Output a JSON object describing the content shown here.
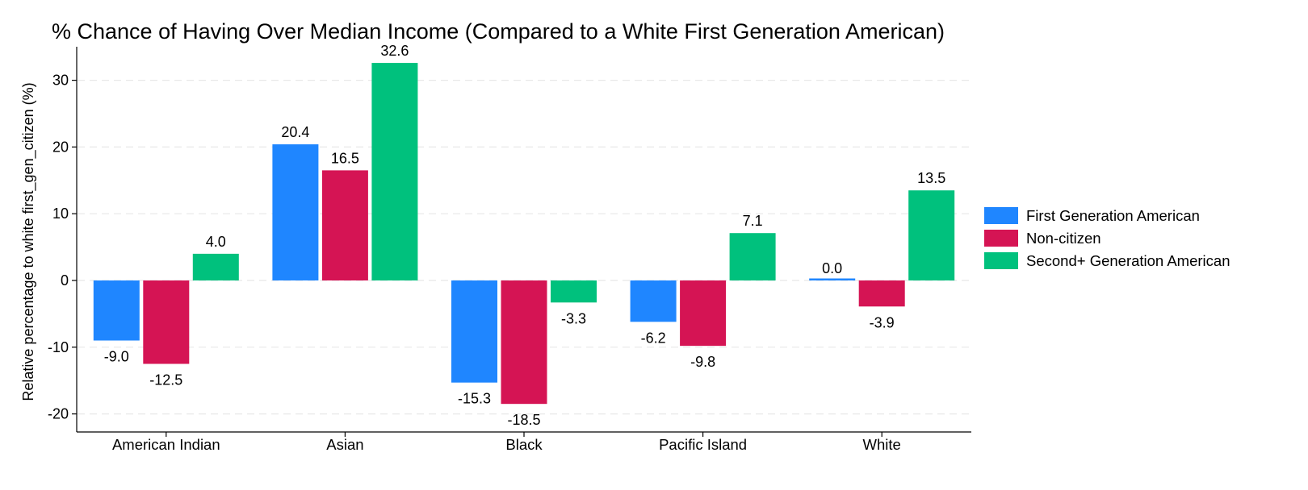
{
  "chart_data": {
    "type": "bar",
    "title": "% Chance of Having Over Median Income (Compared to a White First Generation American)",
    "xlabel": "",
    "ylabel": "Relative percentage to white first_gen_citizen (%)",
    "categories": [
      "American Indian",
      "Asian",
      "Black",
      "Pacific Island",
      "White"
    ],
    "series": [
      {
        "name": "First Generation American",
        "color": "#1f86ff",
        "values": [
          -9.0,
          20.4,
          -15.3,
          -6.2,
          0.0
        ],
        "labels": [
          "-9.0",
          "20.4",
          "-15.3",
          "-6.2",
          "0.0"
        ]
      },
      {
        "name": "Non-citizen",
        "color": "#d51454",
        "values": [
          -12.5,
          16.5,
          -18.5,
          -9.8,
          -3.9
        ],
        "labels": [
          "-12.5",
          "16.5",
          "-18.5",
          "-9.8",
          "-3.9"
        ]
      },
      {
        "name": "Second+ Generation American",
        "color": "#00c17d",
        "values": [
          4.0,
          32.6,
          -3.3,
          7.1,
          13.5
        ],
        "labels": [
          "4.0",
          "32.6",
          "-3.3",
          "7.1",
          "13.5"
        ]
      }
    ],
    "yticks": [
      -20,
      -10,
      0,
      10,
      20,
      30
    ],
    "ytick_labels": [
      "-20",
      "-10",
      "0",
      "10",
      "20",
      "30"
    ],
    "ylim": [
      -22.5,
      35
    ],
    "grid": true,
    "gridline_color": "#e8e8e8",
    "legend_position": "right"
  }
}
